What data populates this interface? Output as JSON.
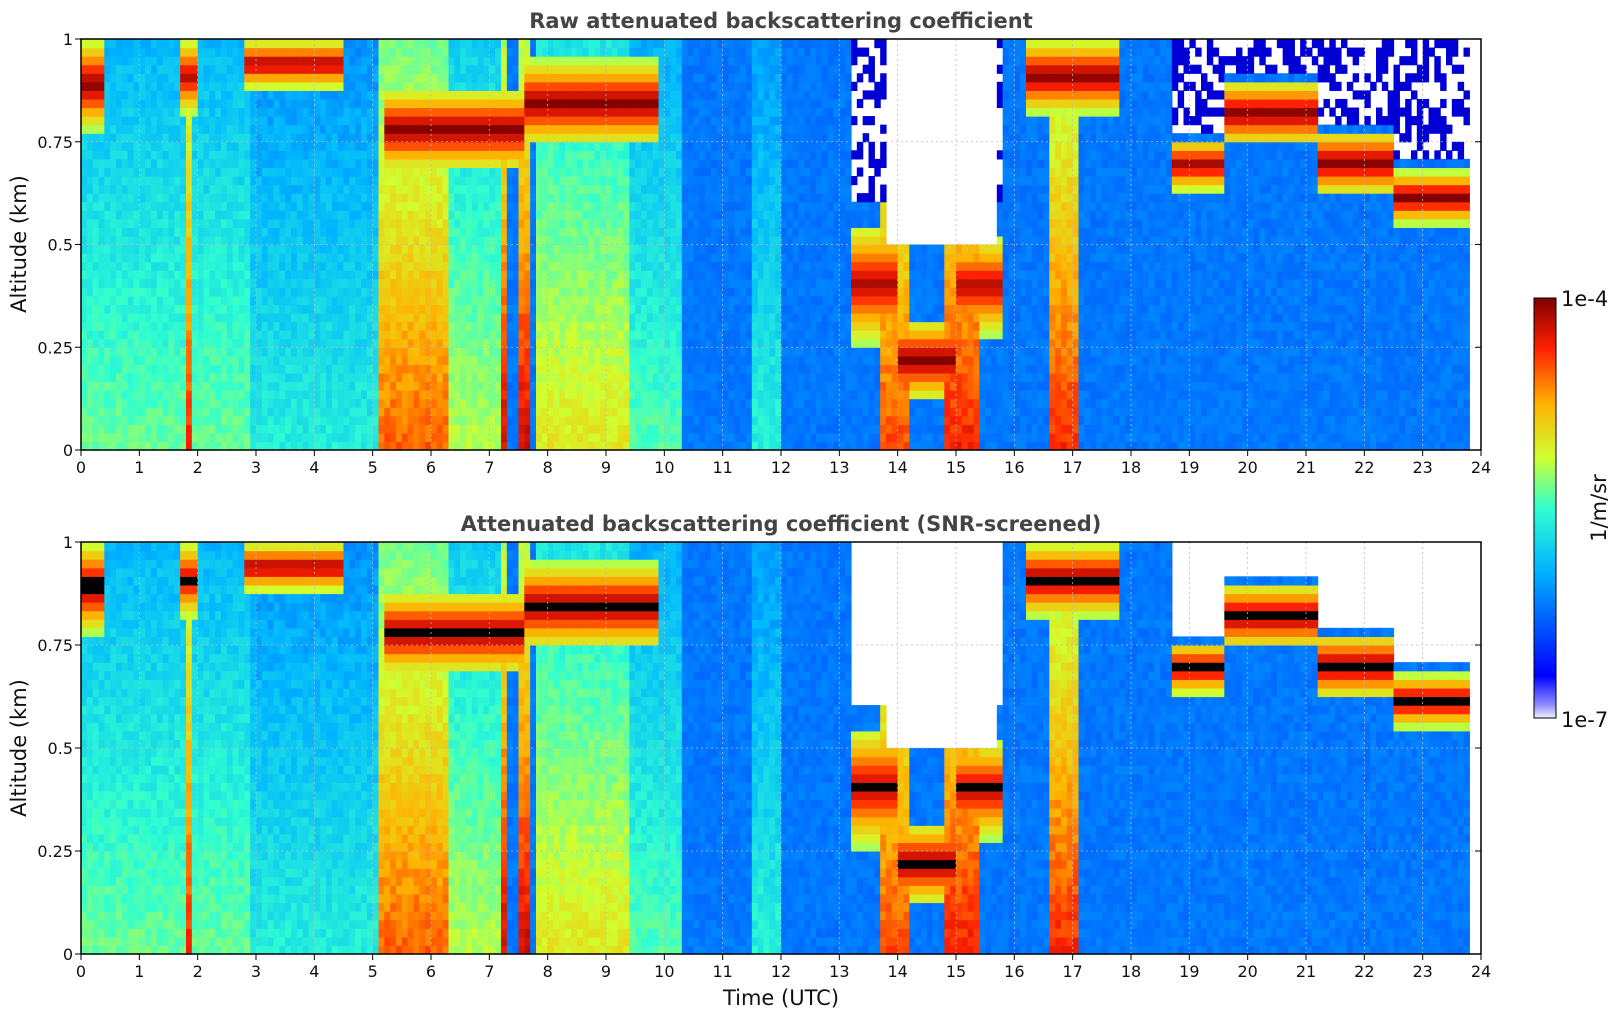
{
  "chart_data": [
    {
      "type": "heatmap",
      "title": "Raw attenuated backscattering coefficient",
      "xlabel": "",
      "ylabel": "Altitude (km)",
      "xlim": [
        0,
        24
      ],
      "ylim": [
        0,
        1
      ],
      "x_ticks": [
        "0",
        "1",
        "2",
        "3",
        "4",
        "5",
        "6",
        "7",
        "8",
        "9",
        "10",
        "11",
        "12",
        "13",
        "14",
        "15",
        "16",
        "17",
        "18",
        "19",
        "20",
        "21",
        "22",
        "23",
        "24"
      ],
      "y_ticks": [
        "0",
        "0.25",
        "0.5",
        "0.75",
        "1"
      ],
      "grid": true,
      "screened": false,
      "data_extent_x": [
        0,
        23.8
      ]
    },
    {
      "type": "heatmap",
      "title": "Attenuated backscattering coefficient (SNR-screened)",
      "xlabel": "Time (UTC)",
      "ylabel": "Altitude (km)",
      "xlim": [
        0,
        24
      ],
      "ylim": [
        0,
        1
      ],
      "x_ticks": [
        "0",
        "1",
        "2",
        "3",
        "4",
        "5",
        "6",
        "7",
        "8",
        "9",
        "10",
        "11",
        "12",
        "13",
        "14",
        "15",
        "16",
        "17",
        "18",
        "19",
        "20",
        "21",
        "22",
        "23",
        "24"
      ],
      "y_ticks": [
        "0",
        "0.25",
        "0.5",
        "0.75",
        "1"
      ],
      "grid": true,
      "screened": true,
      "data_extent_x": [
        0,
        23.8
      ]
    }
  ],
  "colorbar": {
    "label": "1/m/sr",
    "max_label": "1e-4",
    "min_label": "1e-7",
    "scale": "log",
    "colormap": "jet"
  },
  "cloud_layers": [
    {
      "start": 0.0,
      "end": 0.4,
      "base": 0.78,
      "top": 1.0,
      "peak": 1.0
    },
    {
      "start": 1.7,
      "end": 2.0,
      "base": 0.82,
      "top": 1.0,
      "peak": 0.9
    },
    {
      "start": 2.8,
      "end": 4.5,
      "base": 0.88,
      "top": 1.0,
      "peak": 0.95
    },
    {
      "start": 5.2,
      "end": 7.6,
      "base": 0.68,
      "top": 0.88,
      "peak": 1.0
    },
    {
      "start": 7.6,
      "end": 9.9,
      "base": 0.74,
      "top": 0.95,
      "peak": 1.0
    },
    {
      "start": 13.2,
      "end": 14.0,
      "base": 0.26,
      "top": 0.55,
      "peak": 0.9
    },
    {
      "start": 14.0,
      "end": 15.0,
      "base": 0.12,
      "top": 0.32,
      "peak": 1.0
    },
    {
      "start": 15.0,
      "end": 15.8,
      "base": 0.28,
      "top": 0.52,
      "peak": 0.9
    },
    {
      "start": 16.2,
      "end": 17.8,
      "base": 0.82,
      "top": 1.0,
      "peak": 1.0
    },
    {
      "start": 18.7,
      "end": 19.6,
      "base": 0.63,
      "top": 0.76,
      "peak": 0.95
    },
    {
      "start": 19.6,
      "end": 21.2,
      "base": 0.74,
      "top": 0.9,
      "peak": 1.0
    },
    {
      "start": 21.2,
      "end": 22.5,
      "base": 0.62,
      "top": 0.78,
      "peak": 1.0
    },
    {
      "start": 22.5,
      "end": 23.8,
      "base": 0.55,
      "top": 0.68,
      "peak": 1.0
    }
  ],
  "bright_columns": [
    {
      "start": 0.0,
      "end": 2.9,
      "level": 0.52
    },
    {
      "start": 1.8,
      "end": 1.9,
      "level": 0.85
    },
    {
      "start": 2.9,
      "end": 5.1,
      "level": 0.44
    },
    {
      "start": 5.1,
      "end": 6.3,
      "level": 0.8
    },
    {
      "start": 6.3,
      "end": 7.2,
      "level": 0.58
    },
    {
      "start": 7.2,
      "end": 7.3,
      "level": 0.9
    },
    {
      "start": 7.5,
      "end": 7.7,
      "level": 0.9
    },
    {
      "start": 7.8,
      "end": 9.4,
      "level": 0.64
    },
    {
      "start": 9.4,
      "end": 10.3,
      "level": 0.5
    },
    {
      "start": 11.5,
      "end": 12.0,
      "level": 0.45
    },
    {
      "start": 13.7,
      "end": 14.2,
      "level": 0.82
    },
    {
      "start": 14.8,
      "end": 15.4,
      "level": 0.86
    },
    {
      "start": 16.6,
      "end": 17.1,
      "level": 0.85
    }
  ]
}
